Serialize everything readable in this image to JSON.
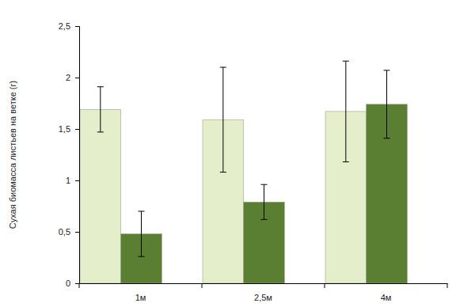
{
  "chart_data": {
    "type": "bar",
    "y_label": "Сухая биомасса листьев на ветке (г)",
    "categories": [
      "1м",
      "2,5м",
      "4м"
    ],
    "series": [
      {
        "color": "#e4eecb",
        "values": [
          1.69,
          1.59,
          1.67
        ],
        "errors": [
          0.22,
          0.51,
          0.49
        ]
      },
      {
        "color": "#5b7f32",
        "values": [
          0.48,
          0.79,
          1.74
        ],
        "errors": [
          0.22,
          0.17,
          0.33
        ]
      }
    ],
    "ylim": [
      0,
      2.5
    ],
    "yticks": [
      0,
      {
        "value": 0.5,
        "label": "0,5"
      },
      1,
      {
        "value": 1.5,
        "label": "1,5"
      },
      2,
      {
        "value": 2.5,
        "label": "2,5"
      }
    ],
    "grid": false
  }
}
